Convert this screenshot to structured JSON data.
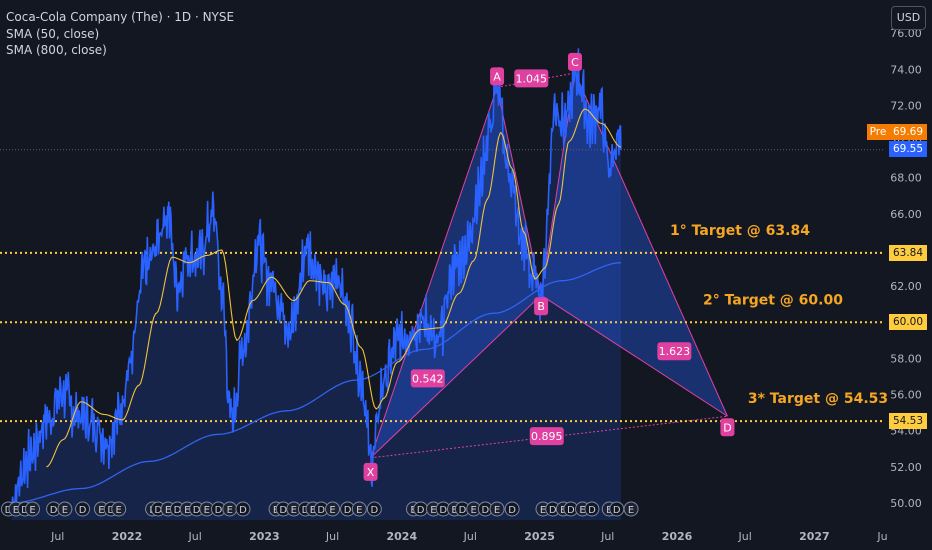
{
  "legend": {
    "title": "Coca-Cola Company (The) · 1D · NYSE",
    "sma1": "SMA (50, close)",
    "sma2": "SMA (800, close)"
  },
  "currency_button": "USD",
  "pre_label": "Pre",
  "price_pre": "69.69",
  "price_last": "69.55",
  "level_tags": [
    "63.84",
    "60.00",
    "54.53"
  ],
  "colors": {
    "background": "#131722",
    "price": "#2962ff",
    "sma50": "#f0c23a",
    "sma800": "#2f63f0",
    "pattern": "#e040a0",
    "target": "#ffcc3e",
    "target_text": "#f5a623"
  },
  "chart_data": {
    "type": "line",
    "y_axis": {
      "min": 49,
      "max": 77,
      "ticks": [
        "50.00",
        "52.00",
        "54.00",
        "56.00",
        "58.00",
        "60.00",
        "62.00",
        "64.00",
        "66.00",
        "68.00",
        "70.00",
        "72.00",
        "74.00",
        "76.00"
      ]
    },
    "x_axis": {
      "ticks": [
        "Jul",
        "2022",
        "Jul",
        "2023",
        "Jul",
        "2024",
        "Jul",
        "2025",
        "Jul",
        "2026",
        "Jul",
        "2027",
        "Ju"
      ]
    },
    "price_anchors": [
      [
        "2021-03-01",
        50.2
      ],
      [
        "2021-04-15",
        52.5
      ],
      [
        "2021-06-01",
        54.5
      ],
      [
        "2021-07-15",
        56.2
      ],
      [
        "2021-08-15",
        55.0
      ],
      [
        "2021-10-01",
        54.5
      ],
      [
        "2021-11-10",
        53.5
      ],
      [
        "2021-12-10",
        54.8
      ],
      [
        "2022-01-05",
        57.5
      ],
      [
        "2022-02-20",
        63.0
      ],
      [
        "2022-04-20",
        66.0
      ],
      [
        "2022-05-15",
        62.0
      ],
      [
        "2022-06-10",
        63.8
      ],
      [
        "2022-07-10",
        63.5
      ],
      [
        "2022-08-20",
        66.0
      ],
      [
        "2022-09-10",
        61.5
      ],
      [
        "2022-10-05",
        54.5
      ],
      [
        "2022-11-10",
        59.0
      ],
      [
        "2022-12-15",
        64.5
      ],
      [
        "2023-01-10",
        62.5
      ],
      [
        "2023-03-15",
        59.8
      ],
      [
        "2023-04-25",
        64.2
      ],
      [
        "2023-05-15",
        63.2
      ],
      [
        "2023-06-15",
        61.5
      ],
      [
        "2023-07-15",
        62.7
      ],
      [
        "2023-08-15",
        60.2
      ],
      [
        "2023-09-15",
        57.0
      ],
      [
        "2023-10-12",
        52.3
      ],
      [
        "2023-11-15",
        56.8
      ],
      [
        "2023-12-20",
        59.0
      ],
      [
        "2024-02-10",
        59.8
      ],
      [
        "2024-03-10",
        60.0
      ],
      [
        "2024-04-01",
        58.5
      ],
      [
        "2024-05-20",
        63.0
      ],
      [
        "2024-06-20",
        64.0
      ],
      [
        "2024-07-20",
        67.0
      ],
      [
        "2024-08-25",
        71.0
      ],
      [
        "2024-09-10",
        73.0
      ],
      [
        "2024-10-10",
        68.5
      ],
      [
        "2024-11-15",
        64.5
      ],
      [
        "2024-12-15",
        62.5
      ],
      [
        "2025-01-05",
        61.7
      ],
      [
        "2025-02-12",
        72.0
      ],
      [
        "2025-03-10",
        71.0
      ],
      [
        "2025-04-10",
        73.8
      ],
      [
        "2025-05-15",
        71.0
      ],
      [
        "2025-06-10",
        72.0
      ],
      [
        "2025-07-05",
        68.5
      ],
      [
        "2025-07-25",
        70.0
      ],
      [
        "2025-08-05",
        69.55
      ]
    ],
    "sma50_anchors": [
      [
        "2021-06-01",
        52.0
      ],
      [
        "2021-07-15",
        53.5
      ],
      [
        "2021-09-01",
        55.6
      ],
      [
        "2021-11-01",
        54.9
      ],
      [
        "2021-12-20",
        54.6
      ],
      [
        "2022-02-01",
        56.5
      ],
      [
        "2022-03-20",
        60.5
      ],
      [
        "2022-05-01",
        63.6
      ],
      [
        "2022-06-15",
        63.3
      ],
      [
        "2022-08-01",
        63.7
      ],
      [
        "2022-09-10",
        64.0
      ],
      [
        "2022-10-20",
        59.0
      ],
      [
        "2022-12-01",
        61.2
      ],
      [
        "2023-01-20",
        62.5
      ],
      [
        "2023-03-20",
        61.2
      ],
      [
        "2023-05-01",
        62.3
      ],
      [
        "2023-06-20",
        62.2
      ],
      [
        "2023-08-01",
        61.0
      ],
      [
        "2023-09-15",
        58.6
      ],
      [
        "2023-10-25",
        55.2
      ],
      [
        "2023-11-15",
        55.8
      ],
      [
        "2023-12-20",
        57.8
      ],
      [
        "2024-02-20",
        59.6
      ],
      [
        "2024-04-15",
        59.7
      ],
      [
        "2024-06-01",
        61.6
      ],
      [
        "2024-07-10",
        63.4
      ],
      [
        "2024-08-15",
        66.8
      ],
      [
        "2024-09-20",
        70.5
      ],
      [
        "2024-10-20",
        68.5
      ],
      [
        "2024-11-20",
        65.0
      ],
      [
        "2024-12-20",
        62.4
      ],
      [
        "2025-01-15",
        63.0
      ],
      [
        "2025-02-20",
        66.5
      ],
      [
        "2025-03-20",
        70.0
      ],
      [
        "2025-05-01",
        71.8
      ],
      [
        "2025-06-15",
        71.0
      ],
      [
        "2025-08-05",
        69.7
      ]
    ],
    "sma800_anchors": [
      [
        "2021-03-01",
        50.0
      ],
      [
        "2021-09-01",
        50.8
      ],
      [
        "2022-03-01",
        52.3
      ],
      [
        "2022-09-01",
        53.8
      ],
      [
        "2023-03-01",
        55.1
      ],
      [
        "2023-09-01",
        56.8
      ],
      [
        "2024-03-01",
        58.5
      ],
      [
        "2024-09-01",
        60.5
      ],
      [
        "2025-03-01",
        62.3
      ],
      [
        "2025-08-05",
        63.3
      ]
    ],
    "harmonic_pattern": {
      "points": {
        "X": [
          "2023-10-10",
          52.5
        ],
        "A": [
          "2024-09-10",
          73.0
        ],
        "B": [
          "2025-01-05",
          61.5
        ],
        "C": [
          "2025-04-05",
          73.8
        ],
        "D": [
          "2026-05-15",
          54.8
        ]
      },
      "ratios": [
        {
          "label": "1.045",
          "x": "2024-12-10",
          "y": 73.5
        },
        {
          "label": "0.542",
          "x": "2024-03-10",
          "y": 56.9
        },
        {
          "label": "1.623",
          "x": "2025-12-25",
          "y": 58.4
        },
        {
          "label": "0.895",
          "x": "2025-01-20",
          "y": 53.7
        }
      ]
    },
    "targets": [
      {
        "value": 63.84,
        "label": "1° Target @ 63.84"
      },
      {
        "value": 60.0,
        "label": "2° Target @ 60.00"
      },
      {
        "value": 54.53,
        "label": "3* Target @ 54.53"
      }
    ],
    "current_price_line": 69.55,
    "events": [
      [
        "2021-02-20",
        "D"
      ],
      [
        "2021-03-12",
        "E"
      ],
      [
        "2021-04-05",
        "D"
      ],
      [
        "2021-04-25",
        "E"
      ],
      [
        "2021-06-20",
        "D"
      ],
      [
        "2021-07-20",
        "E"
      ],
      [
        "2021-09-05",
        "D"
      ],
      [
        "2021-10-25",
        "E"
      ],
      [
        "2021-11-20",
        "D"
      ],
      [
        "2021-12-10",
        "E"
      ],
      [
        "2022-03-10",
        "E"
      ],
      [
        "2022-03-25",
        "D"
      ],
      [
        "2022-04-20",
        "E"
      ],
      [
        "2022-05-15",
        "D"
      ],
      [
        "2022-06-10",
        "E"
      ],
      [
        "2022-07-05",
        "D"
      ],
      [
        "2022-08-01",
        "E"
      ],
      [
        "2022-09-01",
        "D"
      ],
      [
        "2022-10-01",
        "E"
      ],
      [
        "2022-11-05",
        "D"
      ],
      [
        "2023-02-01",
        "E"
      ],
      [
        "2023-02-20",
        "D"
      ],
      [
        "2023-03-20",
        "E"
      ],
      [
        "2023-04-20",
        "D"
      ],
      [
        "2023-05-10",
        "E"
      ],
      [
        "2023-06-01",
        "D"
      ],
      [
        "2023-07-01",
        "E"
      ],
      [
        "2023-08-10",
        "D"
      ],
      [
        "2023-09-10",
        "E"
      ],
      [
        "2023-10-20",
        "D"
      ],
      [
        "2024-02-01",
        "E"
      ],
      [
        "2024-02-20",
        "D"
      ],
      [
        "2024-03-25",
        "E"
      ],
      [
        "2024-04-20",
        "D"
      ],
      [
        "2024-05-20",
        "E"
      ],
      [
        "2024-06-10",
        "D"
      ],
      [
        "2024-07-10",
        "E"
      ],
      [
        "2024-08-10",
        "D"
      ],
      [
        "2024-09-10",
        "E"
      ],
      [
        "2024-10-20",
        "D"
      ],
      [
        "2025-01-10",
        "E"
      ],
      [
        "2025-02-05",
        "D"
      ],
      [
        "2025-03-05",
        "E"
      ],
      [
        "2025-03-25",
        "D"
      ],
      [
        "2025-04-25",
        "E"
      ],
      [
        "2025-05-20",
        "D"
      ],
      [
        "2025-07-05",
        "E"
      ],
      [
        "2025-07-25",
        "D"
      ],
      [
        "2025-09-01",
        "E"
      ]
    ]
  }
}
